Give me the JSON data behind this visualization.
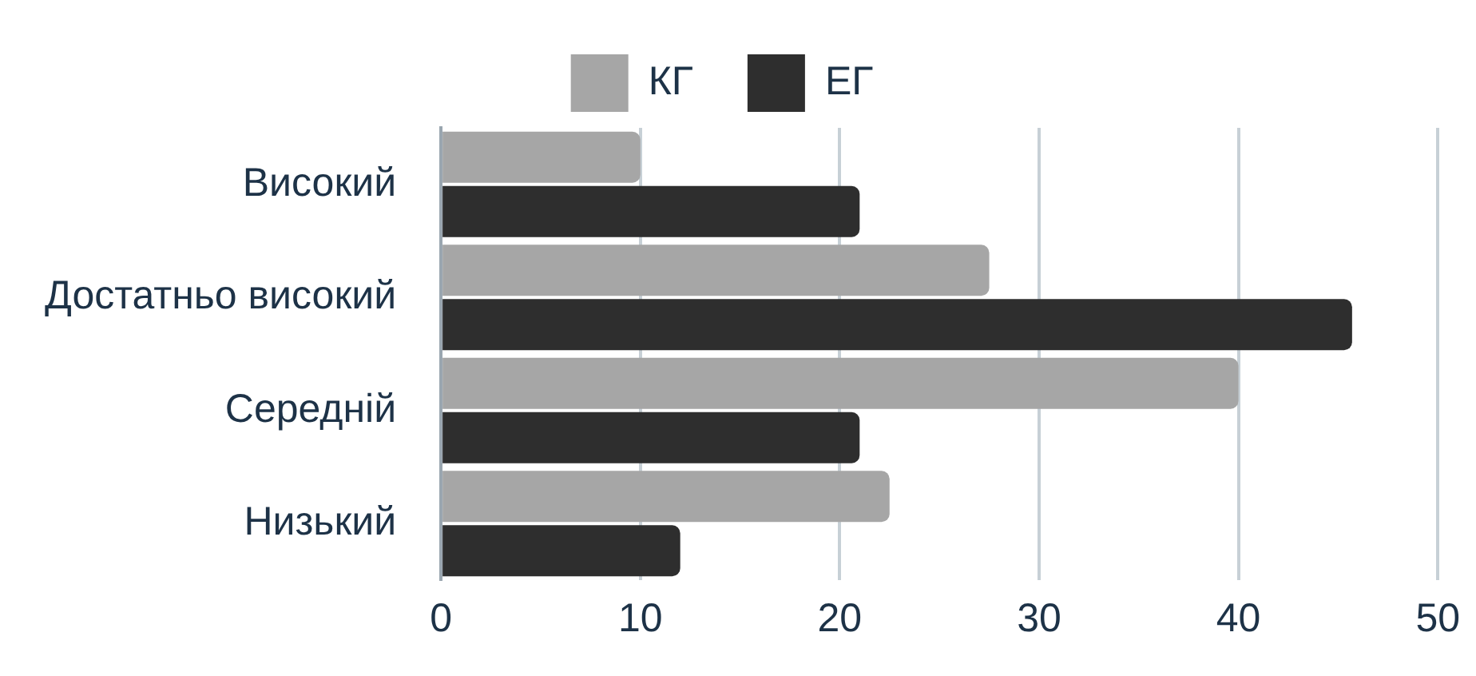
{
  "chart_data": {
    "type": "bar",
    "orientation": "horizontal",
    "categories": [
      "Високий",
      "Достатньо високий",
      "Середній",
      "Низький"
    ],
    "series": [
      {
        "name": "КГ",
        "color": "#a6a6a6",
        "values": [
          10,
          27.5,
          40,
          22.5
        ]
      },
      {
        "name": "ЕГ",
        "color": "#2e2e2e",
        "values": [
          21,
          45.7,
          21,
          12
        ]
      }
    ],
    "xlim": [
      0,
      50
    ],
    "xticks": [
      0,
      10,
      20,
      30,
      40,
      50
    ],
    "grid": "x",
    "legend": "top"
  }
}
